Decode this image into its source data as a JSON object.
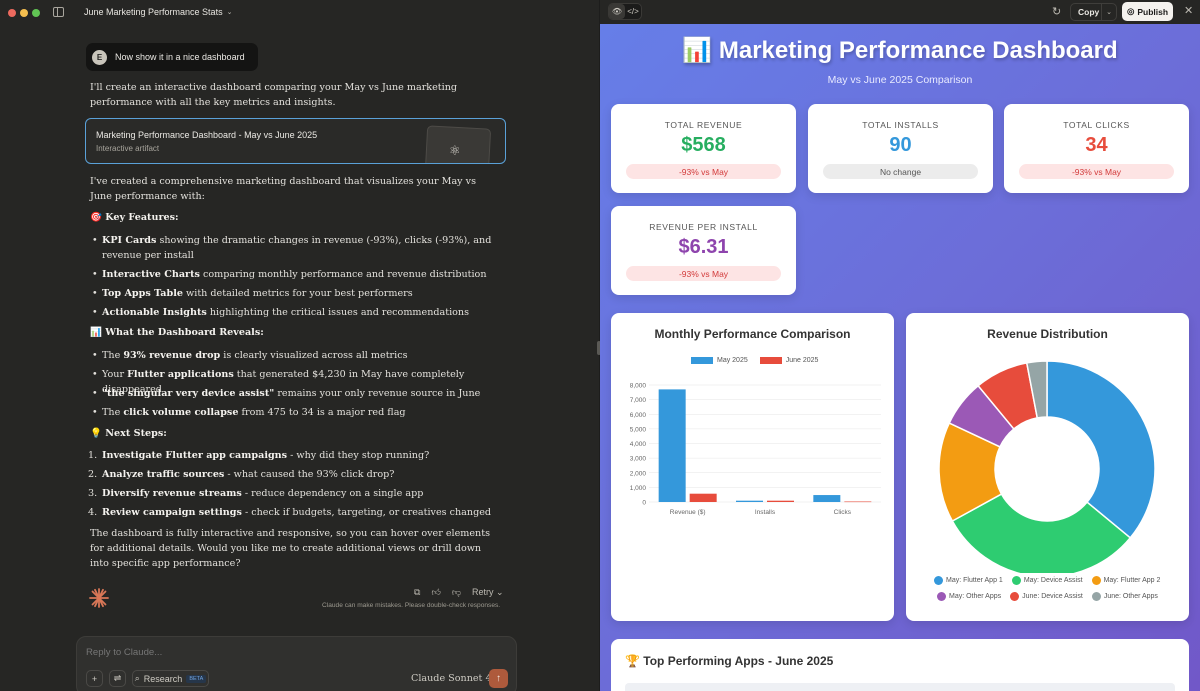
{
  "window": {
    "chat_title": "June Marketing Performance Stats",
    "colors": {
      "close": "#ed6a5e",
      "minimize": "#f5bf4f",
      "maximize": "#61c554"
    }
  },
  "chat": {
    "user_initial": "E",
    "user_message": "Now show it in a nice dashboard",
    "intro": "I'll create an interactive dashboard comparing your May vs June marketing performance with all the key metrics and insights.",
    "artifact": {
      "title": "Marketing Performance Dashboard - May vs June 2025",
      "subtitle": "Interactive artifact",
      "icon": "atom-icon"
    },
    "summary": "I've created a comprehensive marketing dashboard that visualizes your May vs June performance with:",
    "features_heading": "🎯 Key Features:",
    "features": [
      {
        "bold": "KPI Cards",
        "text": " showing the dramatic changes in revenue (-93%), clicks (-93%), and revenue per install"
      },
      {
        "bold": "Interactive Charts",
        "text": " comparing monthly performance and revenue distribution"
      },
      {
        "bold": "Top Apps Table",
        "text": " with detailed metrics for your best performers"
      },
      {
        "bold": "Actionable Insights",
        "text": " highlighting the critical issues and recommendations"
      }
    ],
    "reveals_heading": "📊 What the Dashboard Reveals:",
    "reveals": [
      {
        "pre": "The ",
        "bold": "93% revenue drop",
        "post": " is clearly visualized across all metrics"
      },
      {
        "pre": "Your ",
        "bold": "Flutter applications",
        "post": " that generated $4,230 in May have completely disappeared"
      },
      {
        "pre": "",
        "bold": "\"the singular very device assist\"",
        "post": " remains your only revenue source in June"
      },
      {
        "pre": "The ",
        "bold": "click volume collapse",
        "post": " from 475 to 34 is a major red flag"
      }
    ],
    "next_heading": "💡 Next Steps:",
    "next_steps": [
      {
        "num": "1.",
        "bold": "Investigate Flutter app campaigns",
        "text": " - why did they stop running?"
      },
      {
        "num": "2.",
        "bold": "Analyze traffic sources",
        "text": " - what caused the 93% click drop?"
      },
      {
        "num": "3.",
        "bold": "Diversify revenue streams",
        "text": " - reduce dependency on a single app"
      },
      {
        "num": "4.",
        "bold": "Review campaign settings",
        "text": " - check if budgets, targeting, or creatives changed"
      }
    ],
    "closing": "The dashboard is fully interactive and responsive, so you can hover over elements for additional details. Would you like me to create additional views or drill down into specific app performance?",
    "retry_label": "Retry",
    "disclaimer": "Claude can make mistakes. Please double-check responses.",
    "composer": {
      "placeholder": "Reply to Claude...",
      "research_label": "Research",
      "beta_label": "BETA",
      "model": "Claude Sonnet 4",
      "accent": "#ae5a3c"
    }
  },
  "artifact_bar": {
    "copy_label": "Copy",
    "publish_label": "Publish"
  },
  "dashboard": {
    "title": "📊 Marketing Performance Dashboard",
    "subtitle": "May vs June 2025 Comparison",
    "kpis": [
      {
        "label": "TOTAL REVENUE",
        "value": "$568",
        "change": "-93% vs May",
        "color": "#27ae60",
        "status": "negative"
      },
      {
        "label": "TOTAL INSTALLS",
        "value": "90",
        "change": "No change",
        "color": "#3498db",
        "status": "neutral"
      },
      {
        "label": "TOTAL CLICKS",
        "value": "34",
        "change": "-93% vs May",
        "color": "#e74c3c",
        "status": "negative"
      },
      {
        "label": "REVENUE PER INSTALL",
        "value": "$6.31",
        "change": "-93% vs May",
        "color": "#8e44ad",
        "status": "negative"
      }
    ],
    "top_apps_title": "🏆 Top Performing Apps - June 2025"
  },
  "chart_data": [
    {
      "type": "bar",
      "title": "Monthly Performance Comparison",
      "categories": [
        "Revenue ($)",
        "Installs",
        "Clicks"
      ],
      "series": [
        {
          "name": "May 2025",
          "values": [
            7700,
            90,
            475
          ],
          "color": "#3498db"
        },
        {
          "name": "June 2025",
          "values": [
            568,
            90,
            34
          ],
          "color": "#e74c3c"
        }
      ],
      "yticks": [
        0,
        1000,
        2000,
        3000,
        4000,
        5000,
        6000,
        7000,
        8000
      ],
      "ytick_labels": [
        "0",
        "1,000",
        "2,000",
        "3,000",
        "4,000",
        "5,000",
        "6,000",
        "7,000",
        "8,000"
      ],
      "ylim": [
        0,
        8000
      ],
      "legend": "top",
      "grid": true
    },
    {
      "type": "pie",
      "title": "Revenue Distribution",
      "labels": [
        "May: Flutter App 1",
        "May: Device Assist",
        "May: Flutter App 2",
        "May: Other Apps",
        "June: Device Assist",
        "June: Other Apps"
      ],
      "values": [
        36,
        31,
        15,
        7,
        8,
        3
      ],
      "colors": [
        "#3498db",
        "#2ecc71",
        "#f39c12",
        "#9b59b6",
        "#e74c3c",
        "#95a5a6"
      ],
      "donut": true,
      "legend": "bottom"
    }
  ]
}
